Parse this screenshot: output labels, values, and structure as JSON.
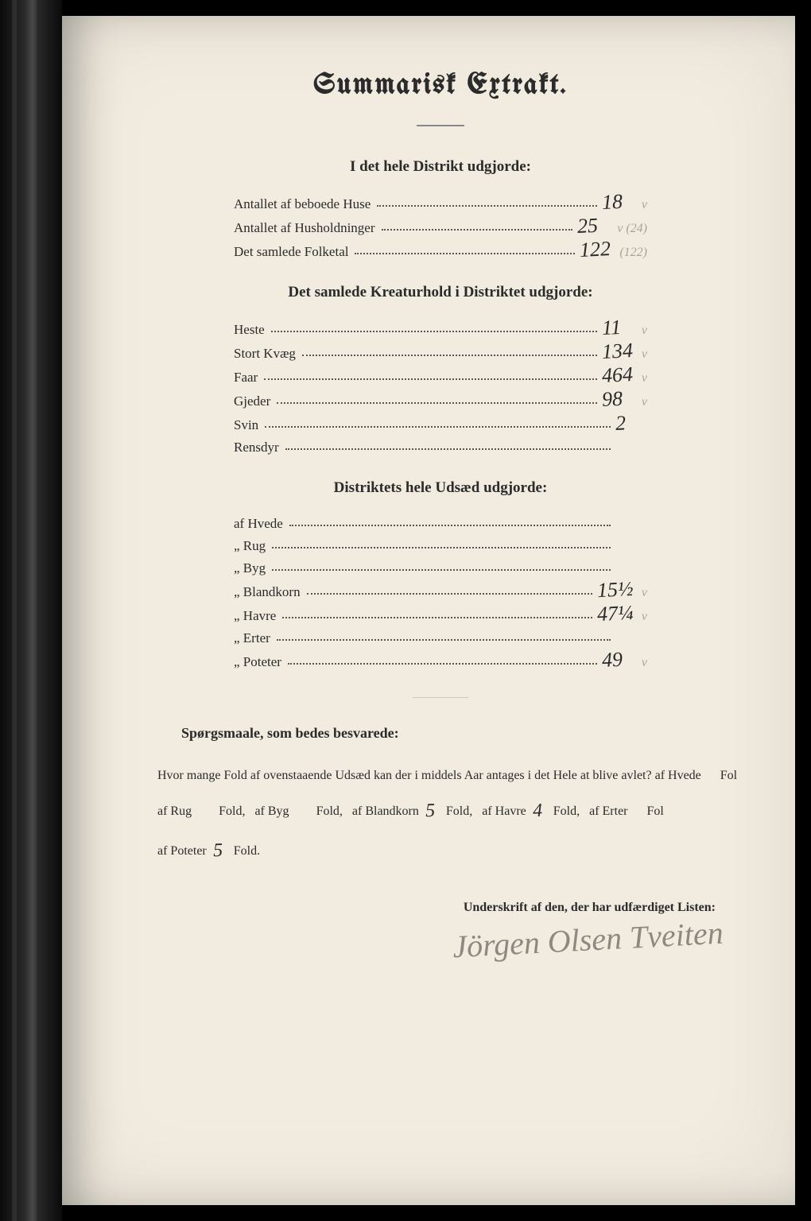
{
  "title": "Summarisk Extrakt.",
  "section1": {
    "heading": "I det hele Distrikt udgjorde:",
    "rows": [
      {
        "label": "Antallet af beboede Huse",
        "value": "18",
        "annot": "v"
      },
      {
        "label": "Antallet af Husholdninger",
        "value": "25",
        "annot": "v (24)"
      },
      {
        "label": "Det samlede Folketal",
        "value": "122",
        "annot": "(122)"
      }
    ]
  },
  "section2": {
    "heading": "Det samlede Kreaturhold i Distriktet udgjorde:",
    "rows": [
      {
        "label": "Heste",
        "value": "11",
        "annot": "v"
      },
      {
        "label": "Stort Kvæg",
        "value": "134",
        "annot": "v"
      },
      {
        "label": "Faar",
        "value": "464",
        "annot": "v"
      },
      {
        "label": "Gjeder",
        "value": "98",
        "annot": "v"
      },
      {
        "label": "Svin",
        "value": "2",
        "annot": ""
      },
      {
        "label": "Rensdyr",
        "value": "",
        "annot": ""
      }
    ]
  },
  "section3": {
    "heading": "Distriktets hele Udsæd udgjorde:",
    "rows": [
      {
        "label": "af Hvede",
        "value": "",
        "annot": ""
      },
      {
        "label": "„  Rug",
        "value": "",
        "annot": ""
      },
      {
        "label": "„  Byg",
        "value": "",
        "annot": ""
      },
      {
        "label": "„  Blandkorn",
        "value": "15½",
        "annot": "v"
      },
      {
        "label": "„  Havre",
        "value": "47¼",
        "annot": "v"
      },
      {
        "label": "„  Erter",
        "value": "",
        "annot": ""
      },
      {
        "label": "„  Poteter",
        "value": "49",
        "annot": "v"
      }
    ]
  },
  "question": {
    "heading": "Spørgsmaale, som bedes besvarede:",
    "intro": "Hvor mange Fold af ovenstaaende Udsæd kan der i middels Aar antages i det Hele at blive avlet?  af Hvede",
    "fill": {
      "hvede": "",
      "rug": "",
      "byg": "",
      "blandkorn": "5",
      "havre": "4",
      "erter": "",
      "poteter": "5"
    },
    "labels": {
      "fold_suffix": "Fold,",
      "fold_end": "Fold.",
      "af_rug": "af Rug",
      "af_byg": "af Byg",
      "af_blandkorn": "af Blandkorn",
      "af_havre": "af Havre",
      "af_erter": "af Erter",
      "af_poteter": "af Poteter",
      "trail": "Fol"
    }
  },
  "signature": {
    "label": "Underskrift af den, der har udfærdiget Listen:",
    "name": "Jörgen Olsen Tveiten"
  },
  "colors": {
    "page_bg": "#f2ece0",
    "ink": "#2b2b2b",
    "pencil": "rgba(100,90,80,0.5)",
    "frame": "#000000"
  }
}
